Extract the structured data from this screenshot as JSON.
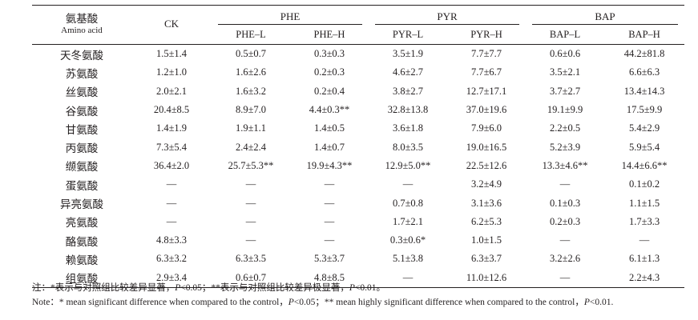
{
  "header": {
    "amino_acid_zh": "氨基酸",
    "amino_acid_en": "Amino acid",
    "ck": "CK",
    "groups": [
      {
        "name": "PHE",
        "cols": [
          "PHE–L",
          "PHE–H"
        ]
      },
      {
        "name": "PYR",
        "cols": [
          "PYR–L",
          "PYR–H"
        ]
      },
      {
        "name": "BAP",
        "cols": [
          "BAP–L",
          "BAP–H"
        ]
      }
    ]
  },
  "rows": [
    {
      "name": "天冬氨酸",
      "values": [
        "1.5±1.4",
        "0.5±0.7",
        "0.3±0.3",
        "3.5±1.9",
        "7.7±7.7",
        "0.6±0.6",
        "44.2±81.8"
      ]
    },
    {
      "name": "苏氨酸",
      "values": [
        "1.2±1.0",
        "1.6±2.6",
        "0.2±0.3",
        "4.6±2.7",
        "7.7±6.7",
        "3.5±2.1",
        "6.6±6.3"
      ]
    },
    {
      "name": "丝氨酸",
      "values": [
        "2.0±2.1",
        "1.6±3.2",
        "0.2±0.4",
        "3.8±2.7",
        "12.7±17.1",
        "3.7±2.7",
        "13.4±14.3"
      ]
    },
    {
      "name": "谷氨酸",
      "values": [
        "20.4±8.5",
        "8.9±7.0",
        "4.4±0.3**",
        "32.8±13.8",
        "37.0±19.6",
        "19.1±9.9",
        "17.5±9.9"
      ]
    },
    {
      "name": "甘氨酸",
      "values": [
        "1.4±1.9",
        "1.9±1.1",
        "1.4±0.5",
        "3.6±1.8",
        "7.9±6.0",
        "2.2±0.5",
        "5.4±2.9"
      ]
    },
    {
      "name": "丙氨酸",
      "values": [
        "7.3±5.4",
        "2.4±2.4",
        "1.4±0.7",
        "8.0±3.5",
        "19.0±16.5",
        "5.2±3.9",
        "5.9±5.4"
      ]
    },
    {
      "name": "缬氨酸",
      "values": [
        "36.4±2.0",
        "25.7±5.3**",
        "19.9±4.3**",
        "12.9±5.0**",
        "22.5±12.6",
        "13.3±4.6**",
        "14.4±6.6**"
      ]
    },
    {
      "name": "蛋氨酸",
      "values": [
        "—",
        "—",
        "—",
        "—",
        "3.2±4.9",
        "—",
        "0.1±0.2"
      ]
    },
    {
      "name": "异亮氨酸",
      "values": [
        "—",
        "—",
        "—",
        "0.7±0.8",
        "3.1±3.6",
        "0.1±0.3",
        "1.1±1.5"
      ]
    },
    {
      "name": "亮氨酸",
      "values": [
        "—",
        "—",
        "—",
        "1.7±2.1",
        "6.2±5.3",
        "0.2±0.3",
        "1.7±3.3"
      ]
    },
    {
      "name": "酪氨酸",
      "values": [
        "4.8±3.3",
        "—",
        "—",
        "0.3±0.6*",
        "1.0±1.5",
        "—",
        "—"
      ]
    },
    {
      "name": "赖氨酸",
      "values": [
        "6.3±3.2",
        "6.3±3.5",
        "5.3±3.7",
        "5.1±3.8",
        "6.3±3.7",
        "3.2±2.6",
        "6.1±1.3"
      ]
    },
    {
      "name": "组氨酸",
      "values": [
        "2.9±3.4",
        "0.6±0.7",
        "4.8±8.5",
        "—",
        "11.0±12.6",
        "—",
        "2.2±4.3"
      ]
    }
  ],
  "notes": {
    "zh_prefix": "注：*表示与对照组比较差异显著，",
    "zh_p1": "P",
    "zh_mid": "<0.05；**表示与对照组比较差异极显著，",
    "zh_p2": "P",
    "zh_end": "<0.01。",
    "en_prefix": "Note：* mean significant difference when compared to the control，",
    "en_p1": "P",
    "en_mid": "<0.05；** mean highly significant difference when compared to the control，",
    "en_p2": "P",
    "en_end": "<0.01."
  }
}
